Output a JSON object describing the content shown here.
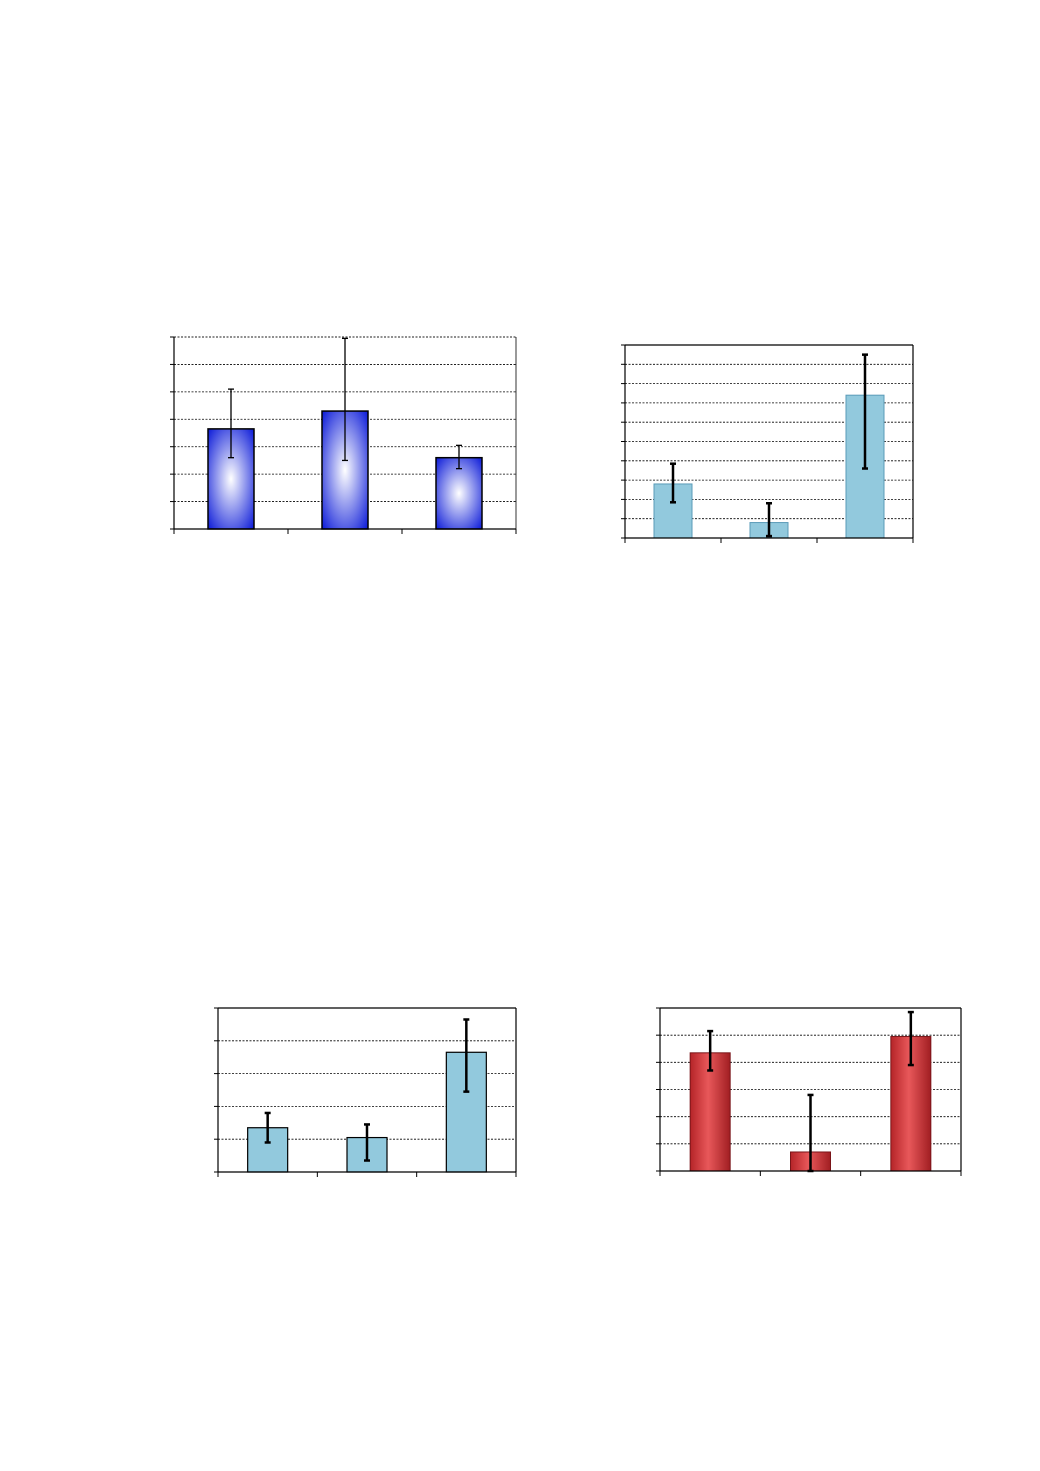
{
  "chart_data": [
    {
      "type": "bar",
      "categories": [
        "",
        "",
        ""
      ],
      "values": [
        3.65,
        4.3,
        2.6
      ],
      "errors": [
        [
          1.05,
          1.45
        ],
        [
          1.8,
          2.65
        ],
        [
          0.4,
          0.45
        ]
      ],
      "ylim": [
        0,
        7
      ],
      "grid": true,
      "colors": {
        "bar_edge": "#0b1ad8",
        "bar_center": "#ffffff",
        "bar_border": "#000000"
      }
    },
    {
      "type": "bar",
      "categories": [
        "",
        "",
        ""
      ],
      "values": [
        2.8,
        0.8,
        7.4
      ],
      "errors": [
        [
          0.95,
          1.05
        ],
        [
          0.7,
          1.0
        ],
        [
          3.8,
          2.1
        ]
      ],
      "ylim": [
        0,
        10
      ],
      "grid": true,
      "colors": {
        "bar_fill": "#92c9dd",
        "bar_border": "#5a9bb8"
      }
    },
    {
      "type": "bar",
      "categories": [
        "",
        "",
        ""
      ],
      "values": [
        1.35,
        1.05,
        3.65
      ],
      "errors": [
        [
          0.45,
          0.45
        ],
        [
          0.7,
          0.4
        ],
        [
          1.2,
          1.0
        ]
      ],
      "ylim": [
        0,
        5
      ],
      "grid": true,
      "colors": {
        "bar_fill": "#92c9dd",
        "bar_border": "#000000"
      }
    },
    {
      "type": "bar",
      "categories": [
        "",
        "",
        ""
      ],
      "values": [
        4.35,
        0.7,
        4.95
      ],
      "errors": [
        [
          0.65,
          0.8
        ],
        [
          0.7,
          2.1
        ],
        [
          1.05,
          0.9
        ]
      ],
      "ylim": [
        0,
        6
      ],
      "grid": true,
      "colors": {
        "bar_light": "#e8585a",
        "bar_dark": "#a11e22",
        "bar_border": "#7a1418"
      }
    }
  ]
}
